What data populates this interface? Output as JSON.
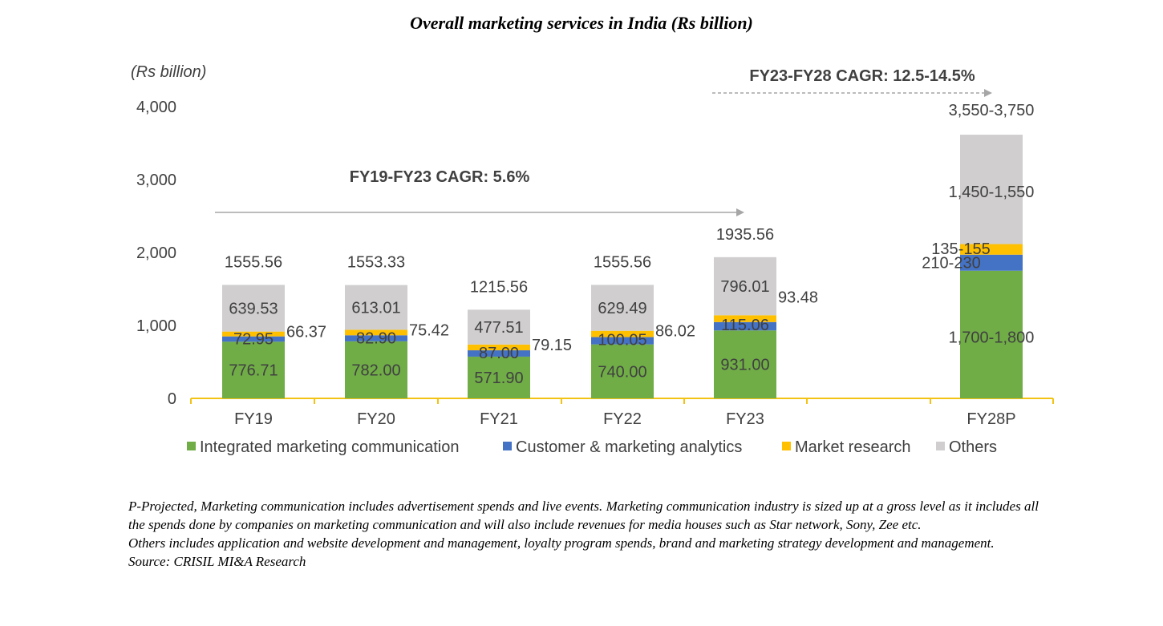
{
  "title": "Overall marketing services in India (Rs billion)",
  "chart_data": {
    "type": "bar",
    "stacked": true,
    "unit_label": "(Rs billion)",
    "categories": [
      "FY19",
      "FY20",
      "FY21",
      "FY22",
      "FY23",
      "FY28P"
    ],
    "ylim": [
      0,
      4000
    ],
    "yticks": [
      "0",
      "1,000",
      "2,000",
      "3,000",
      "4,000"
    ],
    "grid": false,
    "legend_position": "bottom",
    "series": [
      {
        "name": "Integrated marketing communication",
        "color": "#70AD47",
        "values": [
          776.71,
          782.0,
          571.9,
          740.0,
          931.0,
          1750
        ],
        "labels": [
          "776.71",
          "782.00",
          "571.90",
          "740.00",
          "931.00",
          "1,700-1,800"
        ]
      },
      {
        "name": "Customer & marketing analytics",
        "color": "#4472C4",
        "values": [
          72.95,
          82.9,
          87.0,
          100.05,
          115.06,
          220
        ],
        "labels": [
          "72.95",
          "82.90",
          "87.00",
          "100.05",
          "115.06",
          "210-230"
        ]
      },
      {
        "name": "Market research",
        "color": "#FFC000",
        "values": [
          66.37,
          75.42,
          79.15,
          86.02,
          93.48,
          145
        ],
        "labels": [
          "66.37",
          "75.42",
          "79.15",
          "86.02",
          "93.48",
          "135-155"
        ]
      },
      {
        "name": "Others",
        "color": "#D0CECE",
        "values": [
          639.53,
          613.01,
          477.51,
          629.49,
          796.01,
          1500
        ],
        "labels": [
          "639.53",
          "613.01",
          "477.51",
          "629.49",
          "796.01",
          "1,450-1,550"
        ]
      }
    ],
    "totals": [
      "1555.56",
      "1553.33",
      "1215.56",
      "1555.56",
      "1935.56",
      "3,550-3,750"
    ],
    "annotations": [
      {
        "text": "FY19-FY23 CAGR: 5.6%",
        "from": "FY19",
        "to": "FY23",
        "style": "solid-arrow"
      },
      {
        "text": "FY23-FY28 CAGR: 12.5-14.5%",
        "from": "FY23",
        "to": "FY28P",
        "style": "dashed-arrow"
      }
    ]
  },
  "notes": {
    "line1": "P-Projected, Marketing communication includes advertisement spends and live events. Marketing communication industry is sized up at a gross level as it includes all the spends done by companies on marketing communication and will also include revenues for media houses such as Star network, Sony, Zee etc.",
    "line2": "Others includes application and website development and management, loyalty program spends, brand and marketing strategy development and management.",
    "source": "Source: CRISIL MI&A Research"
  }
}
